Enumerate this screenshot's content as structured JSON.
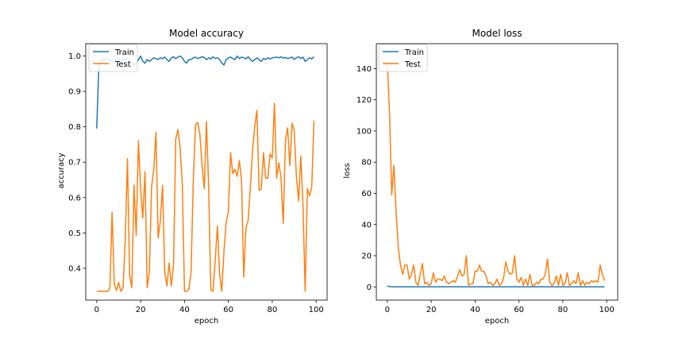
{
  "colors": {
    "train": "#1f77b4",
    "test": "#ff7f0e"
  },
  "chart_data": [
    {
      "type": "line",
      "title": "Model accuracy",
      "xlabel": "epoch",
      "ylabel": "accuracy",
      "xlim": [
        -5,
        105
      ],
      "ylim": [
        0.31,
        1.035
      ],
      "xticks": [
        0,
        20,
        40,
        60,
        80,
        100
      ],
      "yticks": [
        0.4,
        0.5,
        0.6,
        0.7,
        0.8,
        0.9,
        1.0
      ],
      "ytick_labels": [
        "0.4",
        "0.5",
        "0.6",
        "0.7",
        "0.8",
        "0.9",
        "1.0"
      ],
      "legend_position": "upper-left",
      "series": [
        {
          "name": "Train",
          "x": [
            0,
            1,
            2,
            3,
            4,
            5,
            6,
            7,
            8,
            9,
            10,
            11,
            12,
            13,
            14,
            15,
            16,
            17,
            18,
            19,
            20,
            21,
            22,
            23,
            24,
            25,
            26,
            27,
            28,
            29,
            30,
            31,
            32,
            33,
            34,
            35,
            36,
            37,
            38,
            39,
            40,
            41,
            42,
            43,
            44,
            45,
            46,
            47,
            48,
            49,
            50,
            51,
            52,
            53,
            54,
            55,
            56,
            57,
            58,
            59,
            60,
            61,
            62,
            63,
            64,
            65,
            66,
            67,
            68,
            69,
            70,
            71,
            72,
            73,
            74,
            75,
            76,
            77,
            78,
            79,
            80,
            81,
            82,
            83,
            84,
            85,
            86,
            87,
            88,
            89,
            90,
            91,
            92,
            93,
            94,
            95,
            96,
            97,
            98,
            99
          ],
          "values": [
            0.795,
            0.975,
            0.985,
            0.99,
            0.99,
            0.992,
            0.988,
            0.985,
            0.987,
            0.99,
            0.992,
            0.99,
            0.988,
            0.99,
            0.992,
            0.985,
            0.98,
            0.975,
            0.98,
            0.99,
            1.0,
            0.985,
            0.98,
            0.99,
            0.985,
            0.99,
            0.995,
            0.993,
            0.99,
            0.995,
            0.993,
            0.997,
            0.99,
            0.985,
            0.995,
            0.998,
            0.993,
            0.997,
            1.0,
            0.995,
            0.985,
            0.98,
            0.99,
            0.99,
            0.995,
            0.997,
            0.993,
            0.995,
            0.998,
            0.996,
            0.99,
            0.995,
            0.992,
            0.998,
            0.993,
            0.995,
            0.99,
            0.98,
            0.975,
            0.99,
            0.995,
            0.997,
            0.993,
            0.99,
            1.0,
            0.993,
            0.997,
            0.995,
            0.992,
            0.998,
            0.99,
            0.985,
            0.99,
            0.995,
            0.99,
            0.985,
            0.993,
            0.99,
            0.995,
            0.992,
            0.995,
            0.996,
            0.997,
            0.995,
            0.998,
            0.994,
            0.996,
            0.993,
            0.995,
            0.997,
            0.99,
            0.995,
            0.998,
            0.993,
            0.997,
            0.985,
            0.99,
            0.995,
            0.992,
            0.998
          ]
        },
        {
          "name": "Test",
          "x": [
            0,
            1,
            2,
            3,
            4,
            5,
            6,
            7,
            8,
            9,
            10,
            11,
            12,
            13,
            14,
            15,
            16,
            17,
            18,
            19,
            20,
            21,
            22,
            23,
            24,
            25,
            26,
            27,
            28,
            29,
            30,
            31,
            32,
            33,
            34,
            35,
            36,
            37,
            38,
            39,
            40,
            41,
            42,
            43,
            44,
            45,
            46,
            47,
            48,
            49,
            50,
            51,
            52,
            53,
            54,
            55,
            56,
            57,
            58,
            59,
            60,
            61,
            62,
            63,
            64,
            65,
            66,
            67,
            68,
            69,
            70,
            71,
            72,
            73,
            74,
            75,
            76,
            77,
            78,
            79,
            80,
            81,
            82,
            83,
            84,
            85,
            86,
            87,
            88,
            89,
            90,
            91,
            92,
            93,
            94,
            95,
            96,
            97,
            98,
            99
          ],
          "values": [
            0.335,
            0.335,
            0.335,
            0.335,
            0.335,
            0.335,
            0.345,
            0.558,
            0.355,
            0.338,
            0.36,
            0.335,
            0.345,
            0.48,
            0.71,
            0.38,
            0.345,
            0.635,
            0.493,
            0.76,
            0.625,
            0.542,
            0.673,
            0.345,
            0.39,
            0.63,
            0.68,
            0.785,
            0.485,
            0.535,
            0.635,
            0.39,
            0.35,
            0.415,
            0.35,
            0.41,
            0.765,
            0.792,
            0.742,
            0.638,
            0.335,
            0.335,
            0.34,
            0.39,
            0.645,
            0.805,
            0.812,
            0.78,
            0.69,
            0.625,
            0.815,
            0.635,
            0.34,
            0.335,
            0.42,
            0.52,
            0.385,
            0.335,
            0.45,
            0.53,
            0.56,
            0.727,
            0.668,
            0.68,
            0.66,
            0.705,
            0.648,
            0.375,
            0.515,
            0.535,
            0.628,
            0.73,
            0.8,
            0.847,
            0.62,
            0.625,
            0.727,
            0.655,
            0.655,
            0.723,
            0.712,
            0.866,
            0.655,
            0.698,
            0.655,
            0.527,
            0.76,
            0.797,
            0.69,
            0.81,
            0.79,
            0.66,
            0.59,
            0.717,
            0.58,
            0.335,
            0.625,
            0.605,
            0.63,
            0.818
          ]
        }
      ]
    },
    {
      "type": "line",
      "title": "Model loss",
      "xlabel": "epoch",
      "ylabel": "loss",
      "xlim": [
        -5,
        105
      ],
      "ylim": [
        -8.5,
        156
      ],
      "xticks": [
        0,
        20,
        40,
        60,
        80,
        100
      ],
      "yticks": [
        0,
        20,
        40,
        60,
        80,
        100,
        120,
        140
      ],
      "ytick_labels": [
        "0",
        "20",
        "40",
        "60",
        "80",
        "100",
        "120",
        "140"
      ],
      "legend_position": "upper-left",
      "series": [
        {
          "name": "Train",
          "x": [
            0,
            1,
            2,
            3,
            4,
            5,
            6,
            7,
            8,
            9,
            10,
            11,
            12,
            13,
            14,
            15,
            16,
            17,
            18,
            19,
            20,
            21,
            22,
            23,
            24,
            25,
            26,
            27,
            28,
            29,
            30,
            31,
            32,
            33,
            34,
            35,
            36,
            37,
            38,
            39,
            40,
            41,
            42,
            43,
            44,
            45,
            46,
            47,
            48,
            49,
            50,
            51,
            52,
            53,
            54,
            55,
            56,
            57,
            58,
            59,
            60,
            61,
            62,
            63,
            64,
            65,
            66,
            67,
            68,
            69,
            70,
            71,
            72,
            73,
            74,
            75,
            76,
            77,
            78,
            79,
            80,
            81,
            82,
            83,
            84,
            85,
            86,
            87,
            88,
            89,
            90,
            91,
            92,
            93,
            94,
            95,
            96,
            97,
            98,
            99
          ],
          "values": [
            0.6,
            0.15,
            0.08,
            0.06,
            0.05,
            0.05,
            0.05,
            0.05,
            0.05,
            0.05,
            0.05,
            0.05,
            0.05,
            0.05,
            0.05,
            0.05,
            0.05,
            0.05,
            0.05,
            0.05,
            0.05,
            0.05,
            0.05,
            0.05,
            0.05,
            0.05,
            0.05,
            0.05,
            0.05,
            0.05,
            0.05,
            0.05,
            0.05,
            0.05,
            0.05,
            0.05,
            0.05,
            0.05,
            0.05,
            0.05,
            0.05,
            0.05,
            0.05,
            0.05,
            0.05,
            0.05,
            0.05,
            0.05,
            0.05,
            0.05,
            0.05,
            0.05,
            0.05,
            0.05,
            0.05,
            0.05,
            0.05,
            0.05,
            0.05,
            0.05,
            0.05,
            0.05,
            0.05,
            0.05,
            0.05,
            0.05,
            0.05,
            0.05,
            0.05,
            0.05,
            0.05,
            0.05,
            0.05,
            0.05,
            0.05,
            0.05,
            0.05,
            0.05,
            0.05,
            0.05,
            0.05,
            0.05,
            0.05,
            0.05,
            0.05,
            0.05,
            0.05,
            0.05,
            0.05,
            0.05,
            0.05,
            0.05,
            0.05,
            0.05,
            0.05,
            0.05,
            0.05,
            0.05,
            0.05,
            0.05
          ]
        },
        {
          "name": "Test",
          "x": [
            0,
            1,
            2,
            3,
            4,
            5,
            6,
            7,
            8,
            9,
            10,
            11,
            12,
            13,
            14,
            15,
            16,
            17,
            18,
            19,
            20,
            21,
            22,
            23,
            24,
            25,
            26,
            27,
            28,
            29,
            30,
            31,
            32,
            33,
            34,
            35,
            36,
            37,
            38,
            39,
            40,
            41,
            42,
            43,
            44,
            45,
            46,
            47,
            48,
            49,
            50,
            51,
            52,
            53,
            54,
            55,
            56,
            57,
            58,
            59,
            60,
            61,
            62,
            63,
            64,
            65,
            66,
            67,
            68,
            69,
            70,
            71,
            72,
            73,
            74,
            75,
            76,
            77,
            78,
            79,
            80,
            81,
            82,
            83,
            84,
            85,
            86,
            87,
            88,
            89,
            90,
            91,
            92,
            93,
            94,
            95,
            96,
            97,
            98,
            99
          ],
          "values": [
            144,
            112,
            59,
            78,
            48,
            25,
            14,
            8,
            14,
            14,
            5,
            8,
            14,
            3,
            1,
            8,
            15,
            2,
            3,
            1,
            2,
            9,
            3,
            5,
            5,
            4,
            7,
            3,
            2,
            3,
            4,
            3,
            7,
            11,
            7,
            8,
            20,
            1,
            2,
            2,
            10,
            10,
            14,
            10,
            10,
            7,
            2,
            3,
            1,
            2,
            5,
            1,
            2,
            6,
            16,
            10,
            8,
            9,
            20,
            5,
            3,
            6,
            1,
            5,
            1,
            8,
            1,
            1,
            3,
            2,
            5,
            5,
            8,
            18,
            3,
            1,
            2,
            7,
            1,
            8,
            1,
            2,
            9,
            1,
            2,
            4,
            2,
            9,
            1,
            4,
            1,
            3,
            2,
            4,
            3,
            4,
            3,
            14,
            8,
            4
          ]
        }
      ]
    }
  ]
}
